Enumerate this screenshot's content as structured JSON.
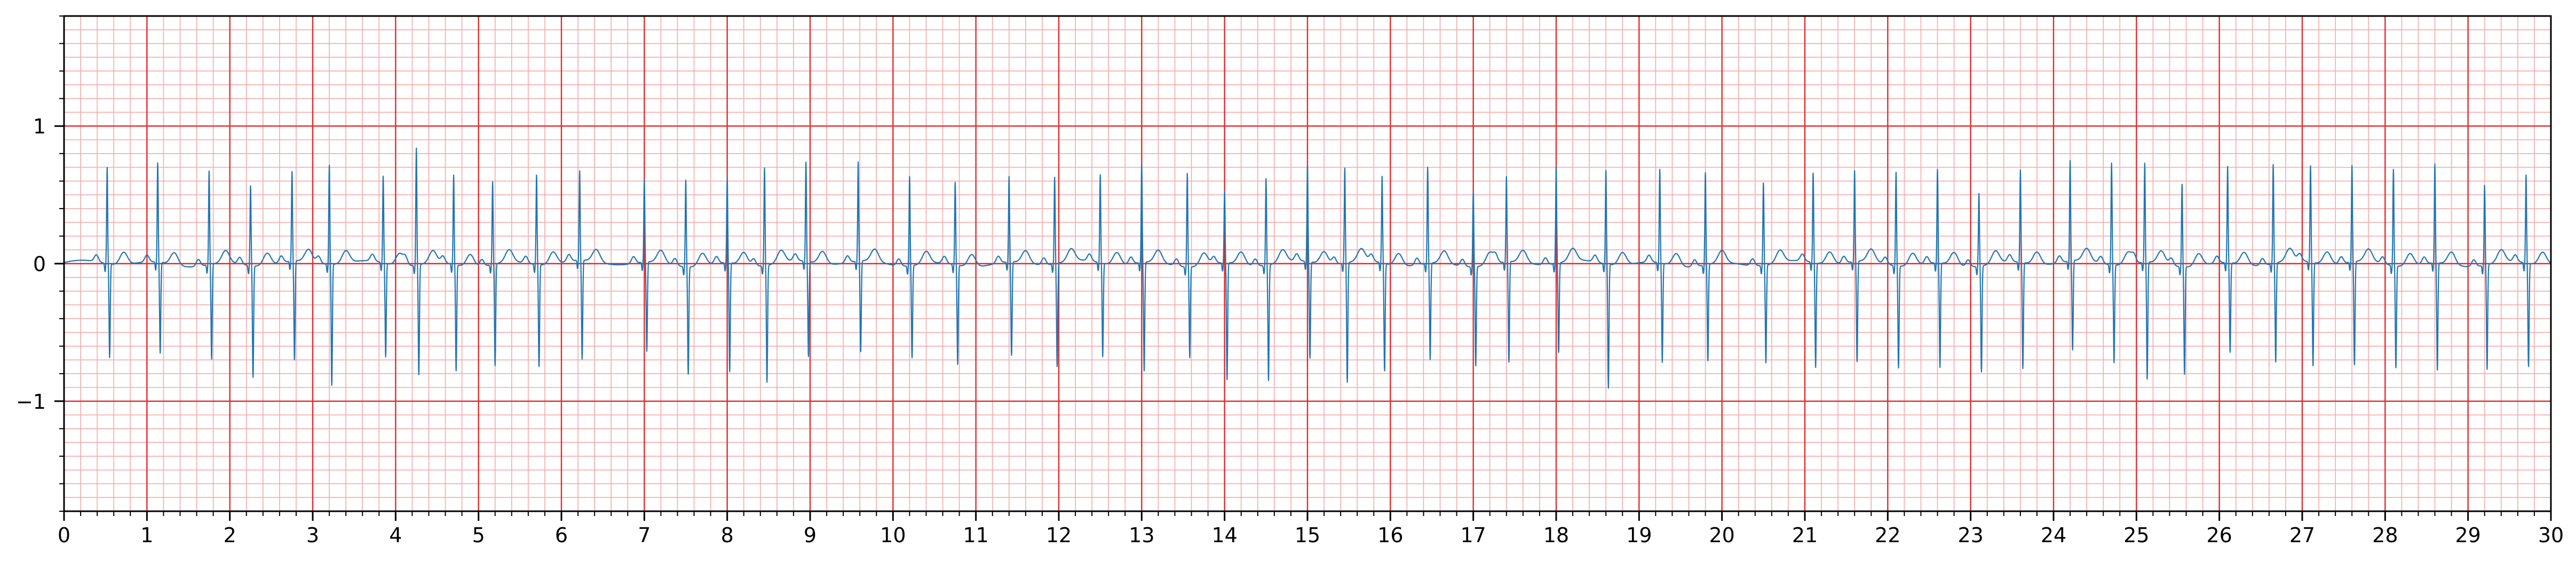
{
  "chart_data": {
    "type": "line",
    "title": "",
    "xlabel": "",
    "ylabel": "",
    "xlim": [
      0,
      30
    ],
    "ylim": [
      -1.8,
      1.8
    ],
    "x_ticks": [
      0,
      1,
      2,
      3,
      4,
      5,
      6,
      7,
      8,
      9,
      10,
      11,
      12,
      13,
      14,
      15,
      16,
      17,
      18,
      19,
      20,
      21,
      22,
      23,
      24,
      25,
      26,
      27,
      28,
      29,
      30
    ],
    "x_tick_labels": [
      "0",
      "1",
      "2",
      "3",
      "4",
      "5",
      "6",
      "7",
      "8",
      "9",
      "10",
      "11",
      "12",
      "13",
      "14",
      "15",
      "16",
      "17",
      "18",
      "19",
      "20",
      "21",
      "22",
      "23",
      "24",
      "25",
      "26",
      "27",
      "28",
      "29",
      "30"
    ],
    "y_ticks": [
      -1,
      0,
      1
    ],
    "y_tick_labels": [
      "−1",
      "0",
      "1"
    ],
    "grid": true,
    "grid_major_color": "#e8282b",
    "grid_minor_color": "#f7a9a9",
    "line_color": "#1f77b4",
    "series": [
      {
        "beat_times": [
          0.52,
          1.13,
          1.75,
          2.25,
          2.75,
          3.2,
          3.85,
          4.25,
          4.7,
          5.17,
          5.7,
          6.22,
          7.0,
          7.5,
          8.0,
          8.45,
          8.95,
          9.58,
          10.2,
          10.75,
          11.4,
          11.95,
          12.5,
          13.0,
          13.55,
          14.0,
          14.5,
          15.0,
          15.45,
          15.9,
          16.45,
          17.0,
          17.4,
          18.0,
          18.6,
          19.25,
          19.8,
          20.5,
          21.1,
          21.6,
          22.1,
          22.6,
          23.1,
          23.6,
          24.2,
          24.7,
          25.1,
          25.55,
          26.1,
          26.65,
          27.1,
          27.6,
          28.1,
          28.6,
          29.2,
          29.7
        ],
        "beat_peaks": [
          0.7,
          0.72,
          0.68,
          0.58,
          0.65,
          0.72,
          0.63,
          0.85,
          0.65,
          0.6,
          0.65,
          0.65,
          0.6,
          0.63,
          0.62,
          0.71,
          0.72,
          0.72,
          0.65,
          0.6,
          0.62,
          0.63,
          0.64,
          0.72,
          0.68,
          0.52,
          0.63,
          0.7,
          0.69,
          0.63,
          0.7,
          0.55,
          0.62,
          0.7,
          0.68,
          0.68,
          0.67,
          0.6,
          0.65,
          0.66,
          0.68,
          0.68,
          0.53,
          0.67,
          0.73,
          0.74,
          0.72,
          0.6,
          0.7,
          0.72,
          0.7,
          0.7,
          0.7,
          0.72,
          0.58,
          0.64
        ],
        "beat_troughs": [
          -0.68,
          -0.66,
          -0.69,
          -0.81,
          -0.72,
          -0.88,
          -0.68,
          -0.8,
          -0.77,
          -0.74,
          -0.74,
          -0.72,
          -0.65,
          -0.78,
          -0.79,
          -0.85,
          -0.69,
          -0.66,
          -0.67,
          -0.72,
          -0.68,
          -0.75,
          -0.68,
          -0.79,
          -0.66,
          -0.85,
          -0.84,
          -0.7,
          -0.87,
          -0.78,
          -0.7,
          -0.72,
          -0.73,
          -0.65,
          -0.9,
          -0.72,
          -0.7,
          -0.71,
          -0.76,
          -0.73,
          -0.74,
          -0.76,
          -0.77,
          -0.77,
          -0.65,
          -0.71,
          -0.85,
          -0.78,
          -0.65,
          -0.72,
          -0.75,
          -0.75,
          -0.74,
          -0.78,
          -0.76,
          -0.75
        ]
      }
    ]
  }
}
